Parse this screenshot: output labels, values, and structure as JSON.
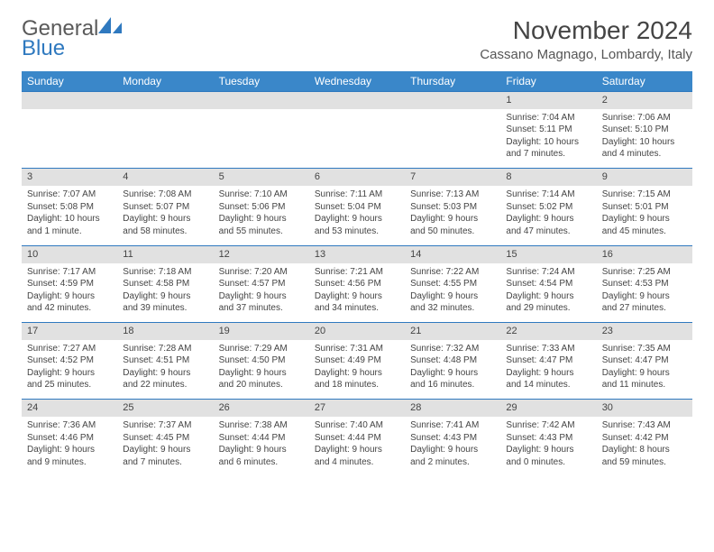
{
  "logo": {
    "gen": "General",
    "blue": "Blue"
  },
  "title": "November 2024",
  "location": "Cassano Magnago, Lombardy, Italy",
  "colors": {
    "header_bg": "#3a87c9",
    "header_text": "#ffffff",
    "daynum_bg": "#e1e1e1",
    "border": "#2f79bf",
    "text": "#444444",
    "logo_gray": "#5a5a5a",
    "logo_blue": "#2f79bf",
    "background": "#ffffff"
  },
  "weekdays": [
    "Sunday",
    "Monday",
    "Tuesday",
    "Wednesday",
    "Thursday",
    "Friday",
    "Saturday"
  ],
  "weeks": [
    {
      "nums": [
        "",
        "",
        "",
        "",
        "",
        "1",
        "2"
      ],
      "cells": [
        null,
        null,
        null,
        null,
        null,
        {
          "sunrise": "Sunrise: 7:04 AM",
          "sunset": "Sunset: 5:11 PM",
          "day1": "Daylight: 10 hours",
          "day2": "and 7 minutes."
        },
        {
          "sunrise": "Sunrise: 7:06 AM",
          "sunset": "Sunset: 5:10 PM",
          "day1": "Daylight: 10 hours",
          "day2": "and 4 minutes."
        }
      ]
    },
    {
      "nums": [
        "3",
        "4",
        "5",
        "6",
        "7",
        "8",
        "9"
      ],
      "cells": [
        {
          "sunrise": "Sunrise: 7:07 AM",
          "sunset": "Sunset: 5:08 PM",
          "day1": "Daylight: 10 hours",
          "day2": "and 1 minute."
        },
        {
          "sunrise": "Sunrise: 7:08 AM",
          "sunset": "Sunset: 5:07 PM",
          "day1": "Daylight: 9 hours",
          "day2": "and 58 minutes."
        },
        {
          "sunrise": "Sunrise: 7:10 AM",
          "sunset": "Sunset: 5:06 PM",
          "day1": "Daylight: 9 hours",
          "day2": "and 55 minutes."
        },
        {
          "sunrise": "Sunrise: 7:11 AM",
          "sunset": "Sunset: 5:04 PM",
          "day1": "Daylight: 9 hours",
          "day2": "and 53 minutes."
        },
        {
          "sunrise": "Sunrise: 7:13 AM",
          "sunset": "Sunset: 5:03 PM",
          "day1": "Daylight: 9 hours",
          "day2": "and 50 minutes."
        },
        {
          "sunrise": "Sunrise: 7:14 AM",
          "sunset": "Sunset: 5:02 PM",
          "day1": "Daylight: 9 hours",
          "day2": "and 47 minutes."
        },
        {
          "sunrise": "Sunrise: 7:15 AM",
          "sunset": "Sunset: 5:01 PM",
          "day1": "Daylight: 9 hours",
          "day2": "and 45 minutes."
        }
      ]
    },
    {
      "nums": [
        "10",
        "11",
        "12",
        "13",
        "14",
        "15",
        "16"
      ],
      "cells": [
        {
          "sunrise": "Sunrise: 7:17 AM",
          "sunset": "Sunset: 4:59 PM",
          "day1": "Daylight: 9 hours",
          "day2": "and 42 minutes."
        },
        {
          "sunrise": "Sunrise: 7:18 AM",
          "sunset": "Sunset: 4:58 PM",
          "day1": "Daylight: 9 hours",
          "day2": "and 39 minutes."
        },
        {
          "sunrise": "Sunrise: 7:20 AM",
          "sunset": "Sunset: 4:57 PM",
          "day1": "Daylight: 9 hours",
          "day2": "and 37 minutes."
        },
        {
          "sunrise": "Sunrise: 7:21 AM",
          "sunset": "Sunset: 4:56 PM",
          "day1": "Daylight: 9 hours",
          "day2": "and 34 minutes."
        },
        {
          "sunrise": "Sunrise: 7:22 AM",
          "sunset": "Sunset: 4:55 PM",
          "day1": "Daylight: 9 hours",
          "day2": "and 32 minutes."
        },
        {
          "sunrise": "Sunrise: 7:24 AM",
          "sunset": "Sunset: 4:54 PM",
          "day1": "Daylight: 9 hours",
          "day2": "and 29 minutes."
        },
        {
          "sunrise": "Sunrise: 7:25 AM",
          "sunset": "Sunset: 4:53 PM",
          "day1": "Daylight: 9 hours",
          "day2": "and 27 minutes."
        }
      ]
    },
    {
      "nums": [
        "17",
        "18",
        "19",
        "20",
        "21",
        "22",
        "23"
      ],
      "cells": [
        {
          "sunrise": "Sunrise: 7:27 AM",
          "sunset": "Sunset: 4:52 PM",
          "day1": "Daylight: 9 hours",
          "day2": "and 25 minutes."
        },
        {
          "sunrise": "Sunrise: 7:28 AM",
          "sunset": "Sunset: 4:51 PM",
          "day1": "Daylight: 9 hours",
          "day2": "and 22 minutes."
        },
        {
          "sunrise": "Sunrise: 7:29 AM",
          "sunset": "Sunset: 4:50 PM",
          "day1": "Daylight: 9 hours",
          "day2": "and 20 minutes."
        },
        {
          "sunrise": "Sunrise: 7:31 AM",
          "sunset": "Sunset: 4:49 PM",
          "day1": "Daylight: 9 hours",
          "day2": "and 18 minutes."
        },
        {
          "sunrise": "Sunrise: 7:32 AM",
          "sunset": "Sunset: 4:48 PM",
          "day1": "Daylight: 9 hours",
          "day2": "and 16 minutes."
        },
        {
          "sunrise": "Sunrise: 7:33 AM",
          "sunset": "Sunset: 4:47 PM",
          "day1": "Daylight: 9 hours",
          "day2": "and 14 minutes."
        },
        {
          "sunrise": "Sunrise: 7:35 AM",
          "sunset": "Sunset: 4:47 PM",
          "day1": "Daylight: 9 hours",
          "day2": "and 11 minutes."
        }
      ]
    },
    {
      "nums": [
        "24",
        "25",
        "26",
        "27",
        "28",
        "29",
        "30"
      ],
      "cells": [
        {
          "sunrise": "Sunrise: 7:36 AM",
          "sunset": "Sunset: 4:46 PM",
          "day1": "Daylight: 9 hours",
          "day2": "and 9 minutes."
        },
        {
          "sunrise": "Sunrise: 7:37 AM",
          "sunset": "Sunset: 4:45 PM",
          "day1": "Daylight: 9 hours",
          "day2": "and 7 minutes."
        },
        {
          "sunrise": "Sunrise: 7:38 AM",
          "sunset": "Sunset: 4:44 PM",
          "day1": "Daylight: 9 hours",
          "day2": "and 6 minutes."
        },
        {
          "sunrise": "Sunrise: 7:40 AM",
          "sunset": "Sunset: 4:44 PM",
          "day1": "Daylight: 9 hours",
          "day2": "and 4 minutes."
        },
        {
          "sunrise": "Sunrise: 7:41 AM",
          "sunset": "Sunset: 4:43 PM",
          "day1": "Daylight: 9 hours",
          "day2": "and 2 minutes."
        },
        {
          "sunrise": "Sunrise: 7:42 AM",
          "sunset": "Sunset: 4:43 PM",
          "day1": "Daylight: 9 hours",
          "day2": "and 0 minutes."
        },
        {
          "sunrise": "Sunrise: 7:43 AM",
          "sunset": "Sunset: 4:42 PM",
          "day1": "Daylight: 8 hours",
          "day2": "and 59 minutes."
        }
      ]
    }
  ]
}
